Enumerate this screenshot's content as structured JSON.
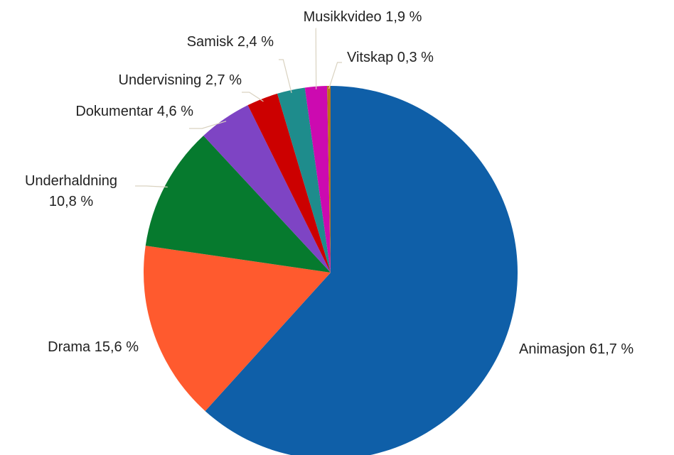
{
  "chart_data": {
    "type": "pie",
    "categories": [
      "Animasjon",
      "Drama",
      "Underhaldning",
      "Dokumentar",
      "Undervisning",
      "Samisk",
      "Musikkvideo",
      "Vitskap"
    ],
    "values": [
      61.7,
      15.6,
      10.8,
      4.6,
      2.7,
      2.4,
      1.9,
      0.3
    ],
    "value_labels": [
      "61,7 %",
      "15,6 %",
      "10,8 %",
      "4,6 %",
      "2,7 %",
      "2,4 %",
      "1,9 %",
      "0,3 %"
    ],
    "colors": [
      "#0f5fa8",
      "#ff5a2e",
      "#067a2e",
      "#7e44c4",
      "#cc0000",
      "#1e8c8c",
      "#cc0ab0",
      "#b8741a"
    ]
  }
}
